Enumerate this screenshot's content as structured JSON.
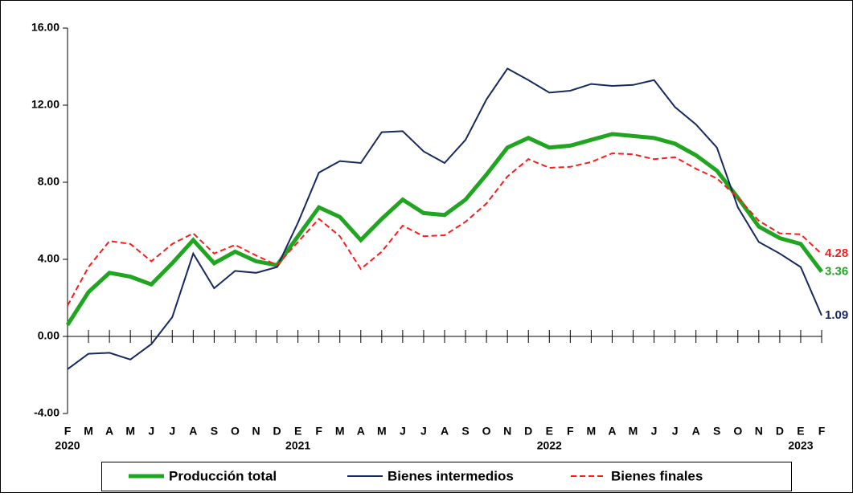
{
  "chart_data": {
    "type": "line",
    "categories": [
      "F",
      "M",
      "A",
      "M",
      "J",
      "J",
      "A",
      "S",
      "O",
      "N",
      "D",
      "E",
      "F",
      "M",
      "A",
      "M",
      "J",
      "J",
      "A",
      "S",
      "O",
      "N",
      "D",
      "E",
      "F",
      "M",
      "A",
      "M",
      "J",
      "J",
      "A",
      "S",
      "O",
      "N",
      "D",
      "E",
      "F"
    ],
    "x_groups": [
      {
        "label": "2020",
        "category": 0
      },
      {
        "label": "2021",
        "category": 11
      },
      {
        "label": "2022",
        "category": 23
      },
      {
        "label": "2023",
        "category": 35
      }
    ],
    "ylim": [
      -4,
      16
    ],
    "yticks": [
      {
        "value": -4,
        "label": "-4.00"
      },
      {
        "value": 0,
        "label": "0.00"
      },
      {
        "value": 4,
        "label": "4.00"
      },
      {
        "value": 8,
        "label": "8.00"
      },
      {
        "value": 12,
        "label": "12.00"
      },
      {
        "value": 16,
        "label": "16.00"
      }
    ],
    "series": [
      {
        "name": "Producción total",
        "color": "#1fa51f",
        "width": 5,
        "dash": "none",
        "end_label": "3.36",
        "values": [
          0.6,
          2.3,
          3.3,
          3.1,
          2.7,
          3.8,
          5.0,
          3.8,
          4.4,
          3.9,
          3.7,
          5.2,
          6.7,
          6.2,
          5.0,
          6.1,
          7.1,
          6.4,
          6.3,
          7.1,
          8.4,
          9.8,
          10.3,
          9.8,
          9.9,
          10.2,
          10.5,
          10.4,
          10.3,
          10.0,
          9.4,
          8.6,
          7.2,
          5.7,
          5.1,
          4.8,
          3.36
        ]
      },
      {
        "name": "Bienes intermedios",
        "color": "#17295e",
        "width": 2,
        "dash": "none",
        "end_label": "1.09",
        "values": [
          -1.7,
          -0.9,
          -0.85,
          -1.2,
          -0.4,
          1.0,
          4.3,
          2.5,
          3.4,
          3.3,
          3.6,
          5.9,
          8.5,
          9.1,
          9.0,
          10.6,
          10.65,
          9.6,
          9.0,
          10.2,
          12.3,
          13.9,
          13.3,
          12.65,
          12.75,
          13.1,
          13.0,
          13.05,
          13.3,
          11.9,
          11.0,
          9.8,
          6.7,
          4.9,
          4.3,
          3.6,
          1.09
        ]
      },
      {
        "name": "Bienes finales",
        "color": "#ff1a1a",
        "width": 2,
        "dash": "7 4",
        "end_label": "4.28",
        "values": [
          1.6,
          3.6,
          4.95,
          4.8,
          3.9,
          4.8,
          5.35,
          4.3,
          4.75,
          4.2,
          3.7,
          4.9,
          6.1,
          5.2,
          3.5,
          4.4,
          5.75,
          5.2,
          5.25,
          5.95,
          6.9,
          8.3,
          9.2,
          8.75,
          8.8,
          9.05,
          9.5,
          9.45,
          9.2,
          9.3,
          8.7,
          8.2,
          7.2,
          6.0,
          5.35,
          5.3,
          4.28
        ]
      }
    ]
  }
}
